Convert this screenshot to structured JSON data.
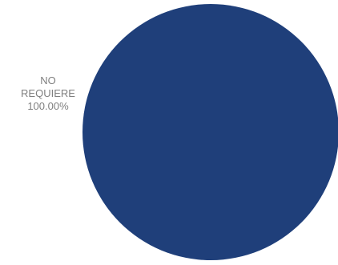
{
  "chart_data": {
    "type": "pie",
    "title": "",
    "legend": "none",
    "slices": [
      {
        "label_lines": [
          "NO",
          "REQUIERE"
        ],
        "value": 100.0,
        "percent_label": "100.00%",
        "color": "#1f3f7a"
      }
    ]
  }
}
